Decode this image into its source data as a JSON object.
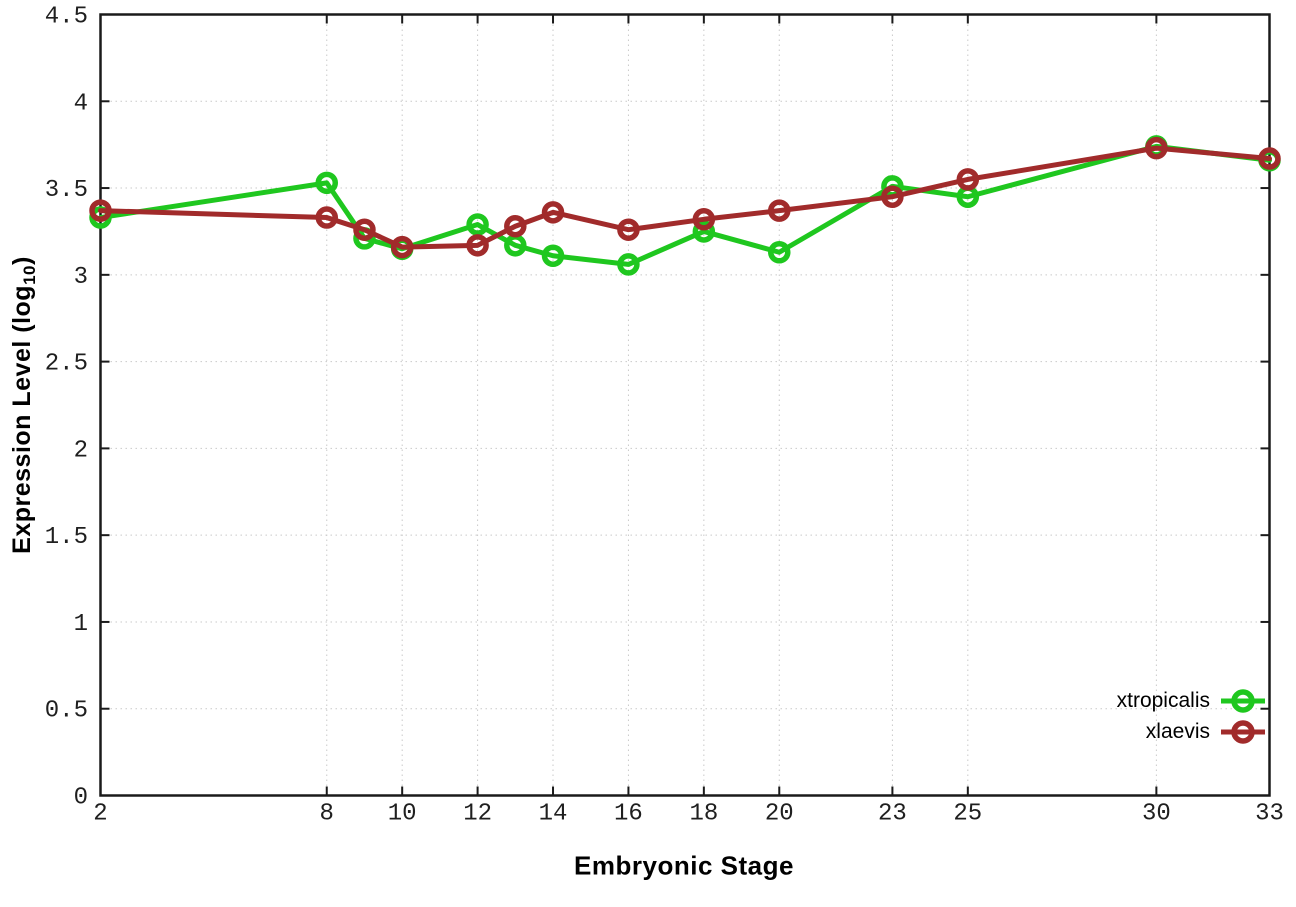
{
  "chart_data": {
    "type": "line",
    "title": "",
    "xlabel": "Embryonic Stage",
    "ylabel_main": "Expression Level (log",
    "ylabel_sub": "10",
    "ylabel_close": ")",
    "xlim": [
      2,
      33
    ],
    "ylim": [
      0,
      4.5
    ],
    "grid": true,
    "legend_position": "bottom-right",
    "marker": "open-circle",
    "x_ticks": [
      2,
      8,
      10,
      12,
      14,
      16,
      18,
      20,
      23,
      25,
      30,
      33
    ],
    "x_tick_labels": [
      "2",
      "8",
      "10",
      "12",
      "14",
      "16",
      "18",
      "20",
      "23",
      "25",
      "30",
      "33"
    ],
    "y_ticks": [
      0,
      0.5,
      1,
      1.5,
      2,
      2.5,
      3,
      3.5,
      4,
      4.5
    ],
    "y_tick_labels": [
      "0",
      "0.5",
      "1",
      "1.5",
      "2",
      "2.5",
      "3",
      "3.5",
      "4",
      "4.5"
    ],
    "x": [
      2,
      8,
      9,
      10,
      12,
      13,
      14,
      16,
      18,
      20,
      23,
      25,
      30,
      33
    ],
    "series": [
      {
        "name": "xtropicalis",
        "color": "#1fc71f",
        "values": [
          3.33,
          3.53,
          3.21,
          3.15,
          3.29,
          3.17,
          3.11,
          3.06,
          3.25,
          3.13,
          3.51,
          3.45,
          3.74,
          3.66
        ]
      },
      {
        "name": "xlaevis",
        "color": "#a12b2b",
        "values": [
          3.37,
          3.33,
          3.26,
          3.16,
          3.17,
          3.28,
          3.36,
          3.26,
          3.32,
          3.37,
          3.45,
          3.55,
          3.73,
          3.67
        ]
      }
    ],
    "style": {
      "background": "#ffffff",
      "border_color": "#1a1a1a",
      "grid_color": "#c9c9c9",
      "tick_label_color": "#1f1f1f"
    }
  }
}
